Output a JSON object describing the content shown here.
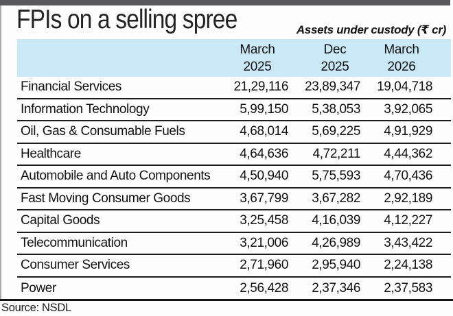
{
  "header": {
    "title": "FPIs on a selling spree",
    "subtitle": "Assets under custody (₹ cr)"
  },
  "table": {
    "columns": [
      {
        "line1": "March",
        "line2": "2025"
      },
      {
        "line1": "Dec",
        "line2": "2025"
      },
      {
        "line1": "March",
        "line2": "2026"
      }
    ],
    "rows": [
      {
        "name": "Financial Services",
        "values": [
          "21,29,116",
          "23,89,347",
          "19,04,718"
        ]
      },
      {
        "name": "Information Technology",
        "values": [
          "5,99,150",
          "5,38,053",
          "3,92,065"
        ]
      },
      {
        "name": "Oil, Gas & Consumable Fuels",
        "values": [
          "4,68,014",
          "5,69,225",
          "4,91,929"
        ]
      },
      {
        "name": "Healthcare",
        "values": [
          "4,64,636",
          "4,72,211",
          "4,44,362"
        ]
      },
      {
        "name": "Automobile and Auto Components",
        "values": [
          "4,50,940",
          "5,75,593",
          "4,70,436"
        ]
      },
      {
        "name": "Fast Moving Consumer Goods",
        "values": [
          "3,67,799",
          "3,67,282",
          "2,92,189"
        ]
      },
      {
        "name": "Capital Goods",
        "values": [
          "3,25,458",
          "4,16,039",
          "4,12,227"
        ]
      },
      {
        "name": "Telecommunication",
        "values": [
          "3,21,006",
          "4,26,989",
          "3,43,422"
        ]
      },
      {
        "name": "Consumer Services",
        "values": [
          "2,71,960",
          "2,95,940",
          "2,24,138"
        ]
      },
      {
        "name": "Power",
        "values": [
          "2,56,428",
          "2,37,346",
          "2,37,583"
        ]
      }
    ]
  },
  "footer": {
    "source": "Source: NSDL"
  },
  "colors": {
    "header_band": "#cbe8f6",
    "top_bar": "#59595b",
    "text": "#121212",
    "rule": "#1c1c1c"
  },
  "chart_data": {
    "type": "table",
    "title": "FPIs on a selling spree",
    "subtitle": "Assets under custody (₹ cr)",
    "categories": [
      "March 2025",
      "Dec 2025",
      "March 2026"
    ],
    "series": [
      {
        "name": "Financial Services",
        "values": [
          2129116,
          2389347,
          1904718
        ]
      },
      {
        "name": "Information Technology",
        "values": [
          599150,
          538053,
          392065
        ]
      },
      {
        "name": "Oil, Gas & Consumable Fuels",
        "values": [
          468014,
          569225,
          491929
        ]
      },
      {
        "name": "Healthcare",
        "values": [
          464636,
          472211,
          444362
        ]
      },
      {
        "name": "Automobile and Auto Components",
        "values": [
          450940,
          575593,
          470436
        ]
      },
      {
        "name": "Fast Moving Consumer Goods",
        "values": [
          367799,
          367282,
          292189
        ]
      },
      {
        "name": "Capital Goods",
        "values": [
          325458,
          416039,
          412227
        ]
      },
      {
        "name": "Telecommunication",
        "values": [
          321006,
          426989,
          343422
        ]
      },
      {
        "name": "Consumer Services",
        "values": [
          271960,
          295940,
          224138
        ]
      },
      {
        "name": "Power",
        "values": [
          256428,
          237346,
          237583
        ]
      }
    ],
    "source": "NSDL",
    "units": "₹ cr"
  }
}
